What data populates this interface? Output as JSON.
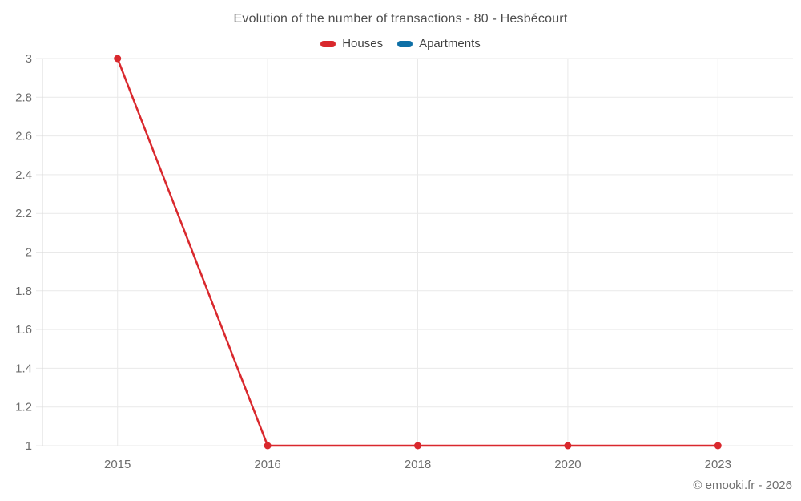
{
  "title": "Evolution of the number of transactions - 80 - Hesbécourt",
  "legend": [
    {
      "label": "Houses",
      "color": "#d9282d"
    },
    {
      "label": "Apartments",
      "color": "#0e6fa6"
    }
  ],
  "copyright": "© emooki.fr - 2026",
  "chart_data": {
    "type": "line",
    "title": "Evolution of the number of transactions - 80 - Hesbécourt",
    "categories": [
      "2015",
      "2016",
      "2018",
      "2020",
      "2023"
    ],
    "series": [
      {
        "name": "Houses",
        "color": "#d9282d",
        "values": [
          3,
          1,
          1,
          1,
          1
        ]
      },
      {
        "name": "Apartments",
        "color": "#0e6fa6",
        "values": []
      }
    ],
    "xlabel": "",
    "ylabel": "",
    "ylim": [
      1,
      3
    ],
    "ytick_step": 0.2,
    "ytick_labels": [
      "1",
      "1.2",
      "1.4",
      "1.6",
      "1.8",
      "2",
      "2.2",
      "2.4",
      "2.6",
      "2.8",
      "3"
    ],
    "grid": true,
    "legend_position": "top"
  },
  "colors": {
    "grid": "#e9e9e9",
    "axis": "#d9d9d9",
    "tick_label": "#6d6d6d",
    "title": "#4d4d4d",
    "legend_label": "#3f3f3f",
    "copyright": "#6f6f6f"
  }
}
